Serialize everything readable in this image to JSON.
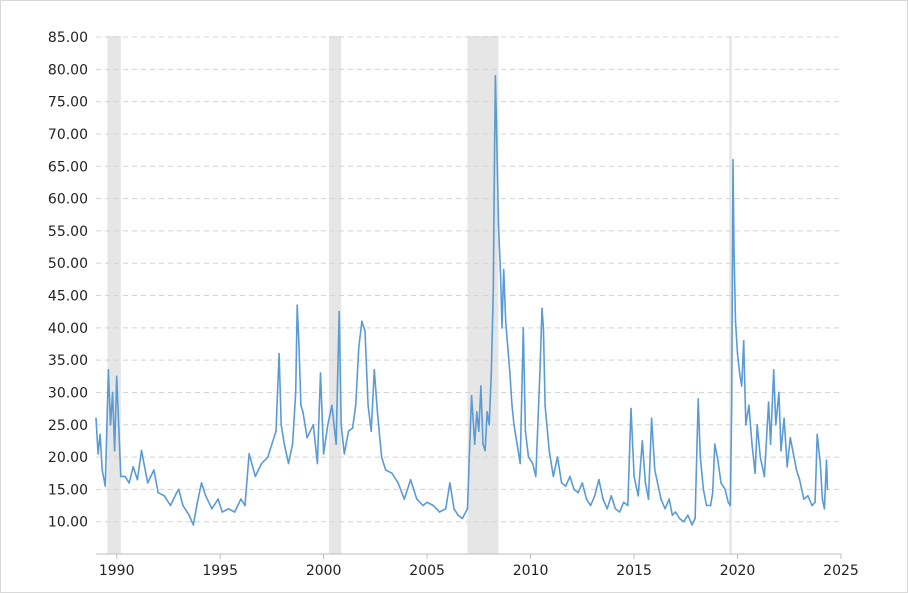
{
  "chart_data": {
    "type": "line",
    "title": "",
    "xlabel": "",
    "ylabel": "",
    "xlim": [
      1989.0,
      2025.0
    ],
    "ylim": [
      5.0,
      85.0
    ],
    "grid": true,
    "legend": "none",
    "line_color": "#5b9bd5",
    "recession_color": "#e6e6e6",
    "y_ticks": [
      "10.00",
      "15.00",
      "20.00",
      "25.00",
      "30.00",
      "35.00",
      "40.00",
      "45.00",
      "50.00",
      "55.00",
      "60.00",
      "65.00",
      "70.00",
      "75.00",
      "80.00",
      "85.00"
    ],
    "x_ticks": [
      "1990",
      "1995",
      "2000",
      "2005",
      "2010",
      "2015",
      "2020",
      "2025"
    ],
    "recessions": [
      {
        "start": 1989.55,
        "end": 1990.2
      },
      {
        "start": 2000.25,
        "end": 2000.85
      },
      {
        "start": 2006.95,
        "end": 2008.45
      },
      {
        "start": 2019.6,
        "end": 2019.72
      }
    ],
    "series": [
      {
        "values": [
          [
            1989.0,
            26.0
          ],
          [
            1989.1,
            20.5
          ],
          [
            1989.2,
            23.5
          ],
          [
            1989.3,
            18.0
          ],
          [
            1989.45,
            15.5
          ],
          [
            1989.6,
            33.5
          ],
          [
            1989.7,
            25.0
          ],
          [
            1989.8,
            30.0
          ],
          [
            1989.9,
            21.0
          ],
          [
            1990.0,
            32.5
          ],
          [
            1990.2,
            17.0
          ],
          [
            1990.4,
            17.0
          ],
          [
            1990.6,
            16.0
          ],
          [
            1990.8,
            18.5
          ],
          [
            1991.0,
            16.5
          ],
          [
            1991.2,
            21.0
          ],
          [
            1991.5,
            16.0
          ],
          [
            1991.8,
            18.0
          ],
          [
            1992.0,
            14.5
          ],
          [
            1992.3,
            14.0
          ],
          [
            1992.6,
            12.5
          ],
          [
            1992.9,
            14.5
          ],
          [
            1993.0,
            15.0
          ],
          [
            1993.2,
            12.5
          ],
          [
            1993.5,
            11.0
          ],
          [
            1993.7,
            9.5
          ],
          [
            1993.9,
            13.0
          ],
          [
            1994.1,
            16.0
          ],
          [
            1994.3,
            14.0
          ],
          [
            1994.6,
            12.0
          ],
          [
            1994.9,
            13.5
          ],
          [
            1995.1,
            11.5
          ],
          [
            1995.4,
            12.0
          ],
          [
            1995.7,
            11.5
          ],
          [
            1996.0,
            13.5
          ],
          [
            1996.2,
            12.5
          ],
          [
            1996.4,
            20.5
          ],
          [
            1996.7,
            17.0
          ],
          [
            1997.0,
            19.0
          ],
          [
            1997.3,
            20.0
          ],
          [
            1997.5,
            22.0
          ],
          [
            1997.7,
            24.0
          ],
          [
            1997.85,
            36.0
          ],
          [
            1997.95,
            25.0
          ],
          [
            1998.1,
            22.0
          ],
          [
            1998.3,
            19.0
          ],
          [
            1998.5,
            22.0
          ],
          [
            1998.65,
            30.0
          ],
          [
            1998.72,
            43.5
          ],
          [
            1998.8,
            38.0
          ],
          [
            1998.9,
            28.0
          ],
          [
            1999.0,
            27.0
          ],
          [
            1999.2,
            23.0
          ],
          [
            1999.5,
            25.0
          ],
          [
            1999.7,
            19.0
          ],
          [
            1999.85,
            33.0
          ],
          [
            2000.0,
            20.5
          ],
          [
            2000.2,
            25.0
          ],
          [
            2000.4,
            28.0
          ],
          [
            2000.6,
            22.0
          ],
          [
            2000.75,
            42.5
          ],
          [
            2000.85,
            25.0
          ],
          [
            2001.0,
            20.5
          ],
          [
            2001.2,
            24.0
          ],
          [
            2001.4,
            24.5
          ],
          [
            2001.55,
            28.0
          ],
          [
            2001.7,
            37.0
          ],
          [
            2001.85,
            41.0
          ],
          [
            2002.0,
            39.5
          ],
          [
            2002.15,
            28.0
          ],
          [
            2002.3,
            24.0
          ],
          [
            2002.45,
            33.5
          ],
          [
            2002.6,
            27.0
          ],
          [
            2002.8,
            20.0
          ],
          [
            2003.0,
            18.0
          ],
          [
            2003.3,
            17.5
          ],
          [
            2003.6,
            16.0
          ],
          [
            2003.9,
            13.5
          ],
          [
            2004.2,
            16.5
          ],
          [
            2004.5,
            13.5
          ],
          [
            2004.8,
            12.5
          ],
          [
            2005.0,
            13.0
          ],
          [
            2005.3,
            12.5
          ],
          [
            2005.6,
            11.5
          ],
          [
            2005.9,
            12.0
          ],
          [
            2006.1,
            16.0
          ],
          [
            2006.3,
            12.0
          ],
          [
            2006.5,
            11.0
          ],
          [
            2006.7,
            10.5
          ],
          [
            2006.95,
            12.0
          ],
          [
            2007.05,
            21.0
          ],
          [
            2007.15,
            29.5
          ],
          [
            2007.3,
            22.0
          ],
          [
            2007.4,
            27.0
          ],
          [
            2007.5,
            24.0
          ],
          [
            2007.6,
            31.0
          ],
          [
            2007.7,
            22.0
          ],
          [
            2007.8,
            21.0
          ],
          [
            2007.9,
            27.0
          ],
          [
            2008.0,
            25.0
          ],
          [
            2008.1,
            33.0
          ],
          [
            2008.2,
            46.0
          ],
          [
            2008.25,
            65.0
          ],
          [
            2008.3,
            79.0
          ],
          [
            2008.35,
            72.0
          ],
          [
            2008.45,
            56.0
          ],
          [
            2008.55,
            48.0
          ],
          [
            2008.62,
            40.0
          ],
          [
            2008.7,
            49.0
          ],
          [
            2008.8,
            41.0
          ],
          [
            2008.9,
            37.0
          ],
          [
            2009.0,
            33.0
          ],
          [
            2009.1,
            28.0
          ],
          [
            2009.2,
            25.0
          ],
          [
            2009.35,
            22.0
          ],
          [
            2009.5,
            19.0
          ],
          [
            2009.65,
            40.0
          ],
          [
            2009.75,
            24.0
          ],
          [
            2009.9,
            20.0
          ],
          [
            2010.1,
            19.0
          ],
          [
            2010.25,
            17.0
          ],
          [
            2010.45,
            33.0
          ],
          [
            2010.55,
            43.0
          ],
          [
            2010.62,
            40.0
          ],
          [
            2010.7,
            28.0
          ],
          [
            2010.9,
            21.0
          ],
          [
            2011.1,
            17.0
          ],
          [
            2011.3,
            20.0
          ],
          [
            2011.5,
            16.0
          ],
          [
            2011.7,
            15.5
          ],
          [
            2011.9,
            17.0
          ],
          [
            2012.1,
            15.0
          ],
          [
            2012.3,
            14.5
          ],
          [
            2012.5,
            16.0
          ],
          [
            2012.7,
            13.5
          ],
          [
            2012.9,
            12.5
          ],
          [
            2013.1,
            14.0
          ],
          [
            2013.3,
            16.5
          ],
          [
            2013.5,
            13.5
          ],
          [
            2013.7,
            12.0
          ],
          [
            2013.9,
            14.0
          ],
          [
            2014.1,
            12.0
          ],
          [
            2014.3,
            11.5
          ],
          [
            2014.5,
            13.0
          ],
          [
            2014.7,
            12.5
          ],
          [
            2014.85,
            27.5
          ],
          [
            2015.0,
            17.0
          ],
          [
            2015.2,
            14.0
          ],
          [
            2015.4,
            22.5
          ],
          [
            2015.55,
            16.0
          ],
          [
            2015.7,
            13.5
          ],
          [
            2015.85,
            26.0
          ],
          [
            2016.0,
            18.0
          ],
          [
            2016.3,
            13.5
          ],
          [
            2016.5,
            12.0
          ],
          [
            2016.7,
            13.5
          ],
          [
            2016.85,
            11.0
          ],
          [
            2017.0,
            11.5
          ],
          [
            2017.2,
            10.5
          ],
          [
            2017.4,
            10.0
          ],
          [
            2017.6,
            11.0
          ],
          [
            2017.8,
            9.5
          ],
          [
            2017.95,
            10.5
          ],
          [
            2018.1,
            29.0
          ],
          [
            2018.2,
            20.0
          ],
          [
            2018.35,
            15.0
          ],
          [
            2018.5,
            12.5
          ],
          [
            2018.7,
            12.5
          ],
          [
            2018.8,
            14.5
          ],
          [
            2018.9,
            22.0
          ],
          [
            2019.05,
            19.5
          ],
          [
            2019.2,
            16.0
          ],
          [
            2019.4,
            15.0
          ],
          [
            2019.55,
            13.0
          ],
          [
            2019.65,
            12.5
          ],
          [
            2019.72,
            28.0
          ],
          [
            2019.78,
            66.0
          ],
          [
            2019.83,
            52.0
          ],
          [
            2019.9,
            41.0
          ],
          [
            2020.0,
            36.0
          ],
          [
            2020.1,
            33.0
          ],
          [
            2020.2,
            31.0
          ],
          [
            2020.3,
            38.0
          ],
          [
            2020.4,
            25.0
          ],
          [
            2020.55,
            28.0
          ],
          [
            2020.7,
            22.0
          ],
          [
            2020.85,
            17.5
          ],
          [
            2020.95,
            25.0
          ],
          [
            2021.1,
            20.0
          ],
          [
            2021.3,
            17.0
          ],
          [
            2021.5,
            28.5
          ],
          [
            2021.6,
            22.0
          ],
          [
            2021.75,
            33.5
          ],
          [
            2021.85,
            25.0
          ],
          [
            2022.0,
            30.0
          ],
          [
            2022.1,
            21.0
          ],
          [
            2022.25,
            26.0
          ],
          [
            2022.4,
            18.5
          ],
          [
            2022.55,
            23.0
          ],
          [
            2022.7,
            20.5
          ],
          [
            2022.85,
            18.0
          ],
          [
            2023.0,
            16.5
          ],
          [
            2023.2,
            13.5
          ],
          [
            2023.4,
            14.0
          ],
          [
            2023.6,
            12.5
          ],
          [
            2023.75,
            13.0
          ],
          [
            2023.85,
            23.5
          ],
          [
            2024.0,
            19.0
          ],
          [
            2024.1,
            13.5
          ],
          [
            2024.2,
            12.0
          ],
          [
            2024.3,
            19.5
          ],
          [
            2024.35,
            15.0
          ]
        ]
      }
    ]
  }
}
